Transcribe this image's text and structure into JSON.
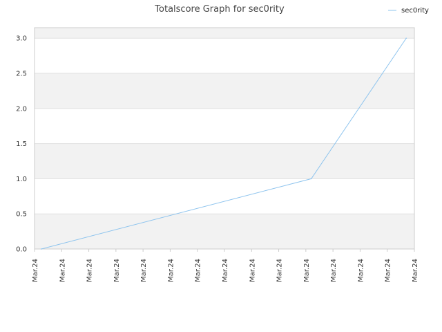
{
  "chart_data": {
    "type": "line",
    "title": "Totalscore Graph for sec0rity",
    "xlabel": "",
    "ylabel": "",
    "ylim": [
      0,
      3.15
    ],
    "yticks": [
      "0.0",
      "0.5",
      "1.0",
      "1.5",
      "2.0",
      "2.5",
      "3.0"
    ],
    "xticks": [
      "Mar.24",
      "Mar.24",
      "Mar.24",
      "Mar.24",
      "Mar.24",
      "Mar.24",
      "Mar.24",
      "Mar.24",
      "Mar.24",
      "Mar.24",
      "Mar.24",
      "Mar.24",
      "Mar.24",
      "Mar.24",
      "Mar.24"
    ],
    "grid": true,
    "legend_position": "top-right",
    "series": [
      {
        "name": "sec0rity",
        "color": "#8ec4ee",
        "x_tick_index": [
          0.25,
          10.2,
          13.7
        ],
        "values": [
          0,
          1,
          3
        ]
      }
    ],
    "colors": {
      "band": "#f2f2f2",
      "grid": "#e0e0e0",
      "axis": "#cccccc"
    }
  }
}
